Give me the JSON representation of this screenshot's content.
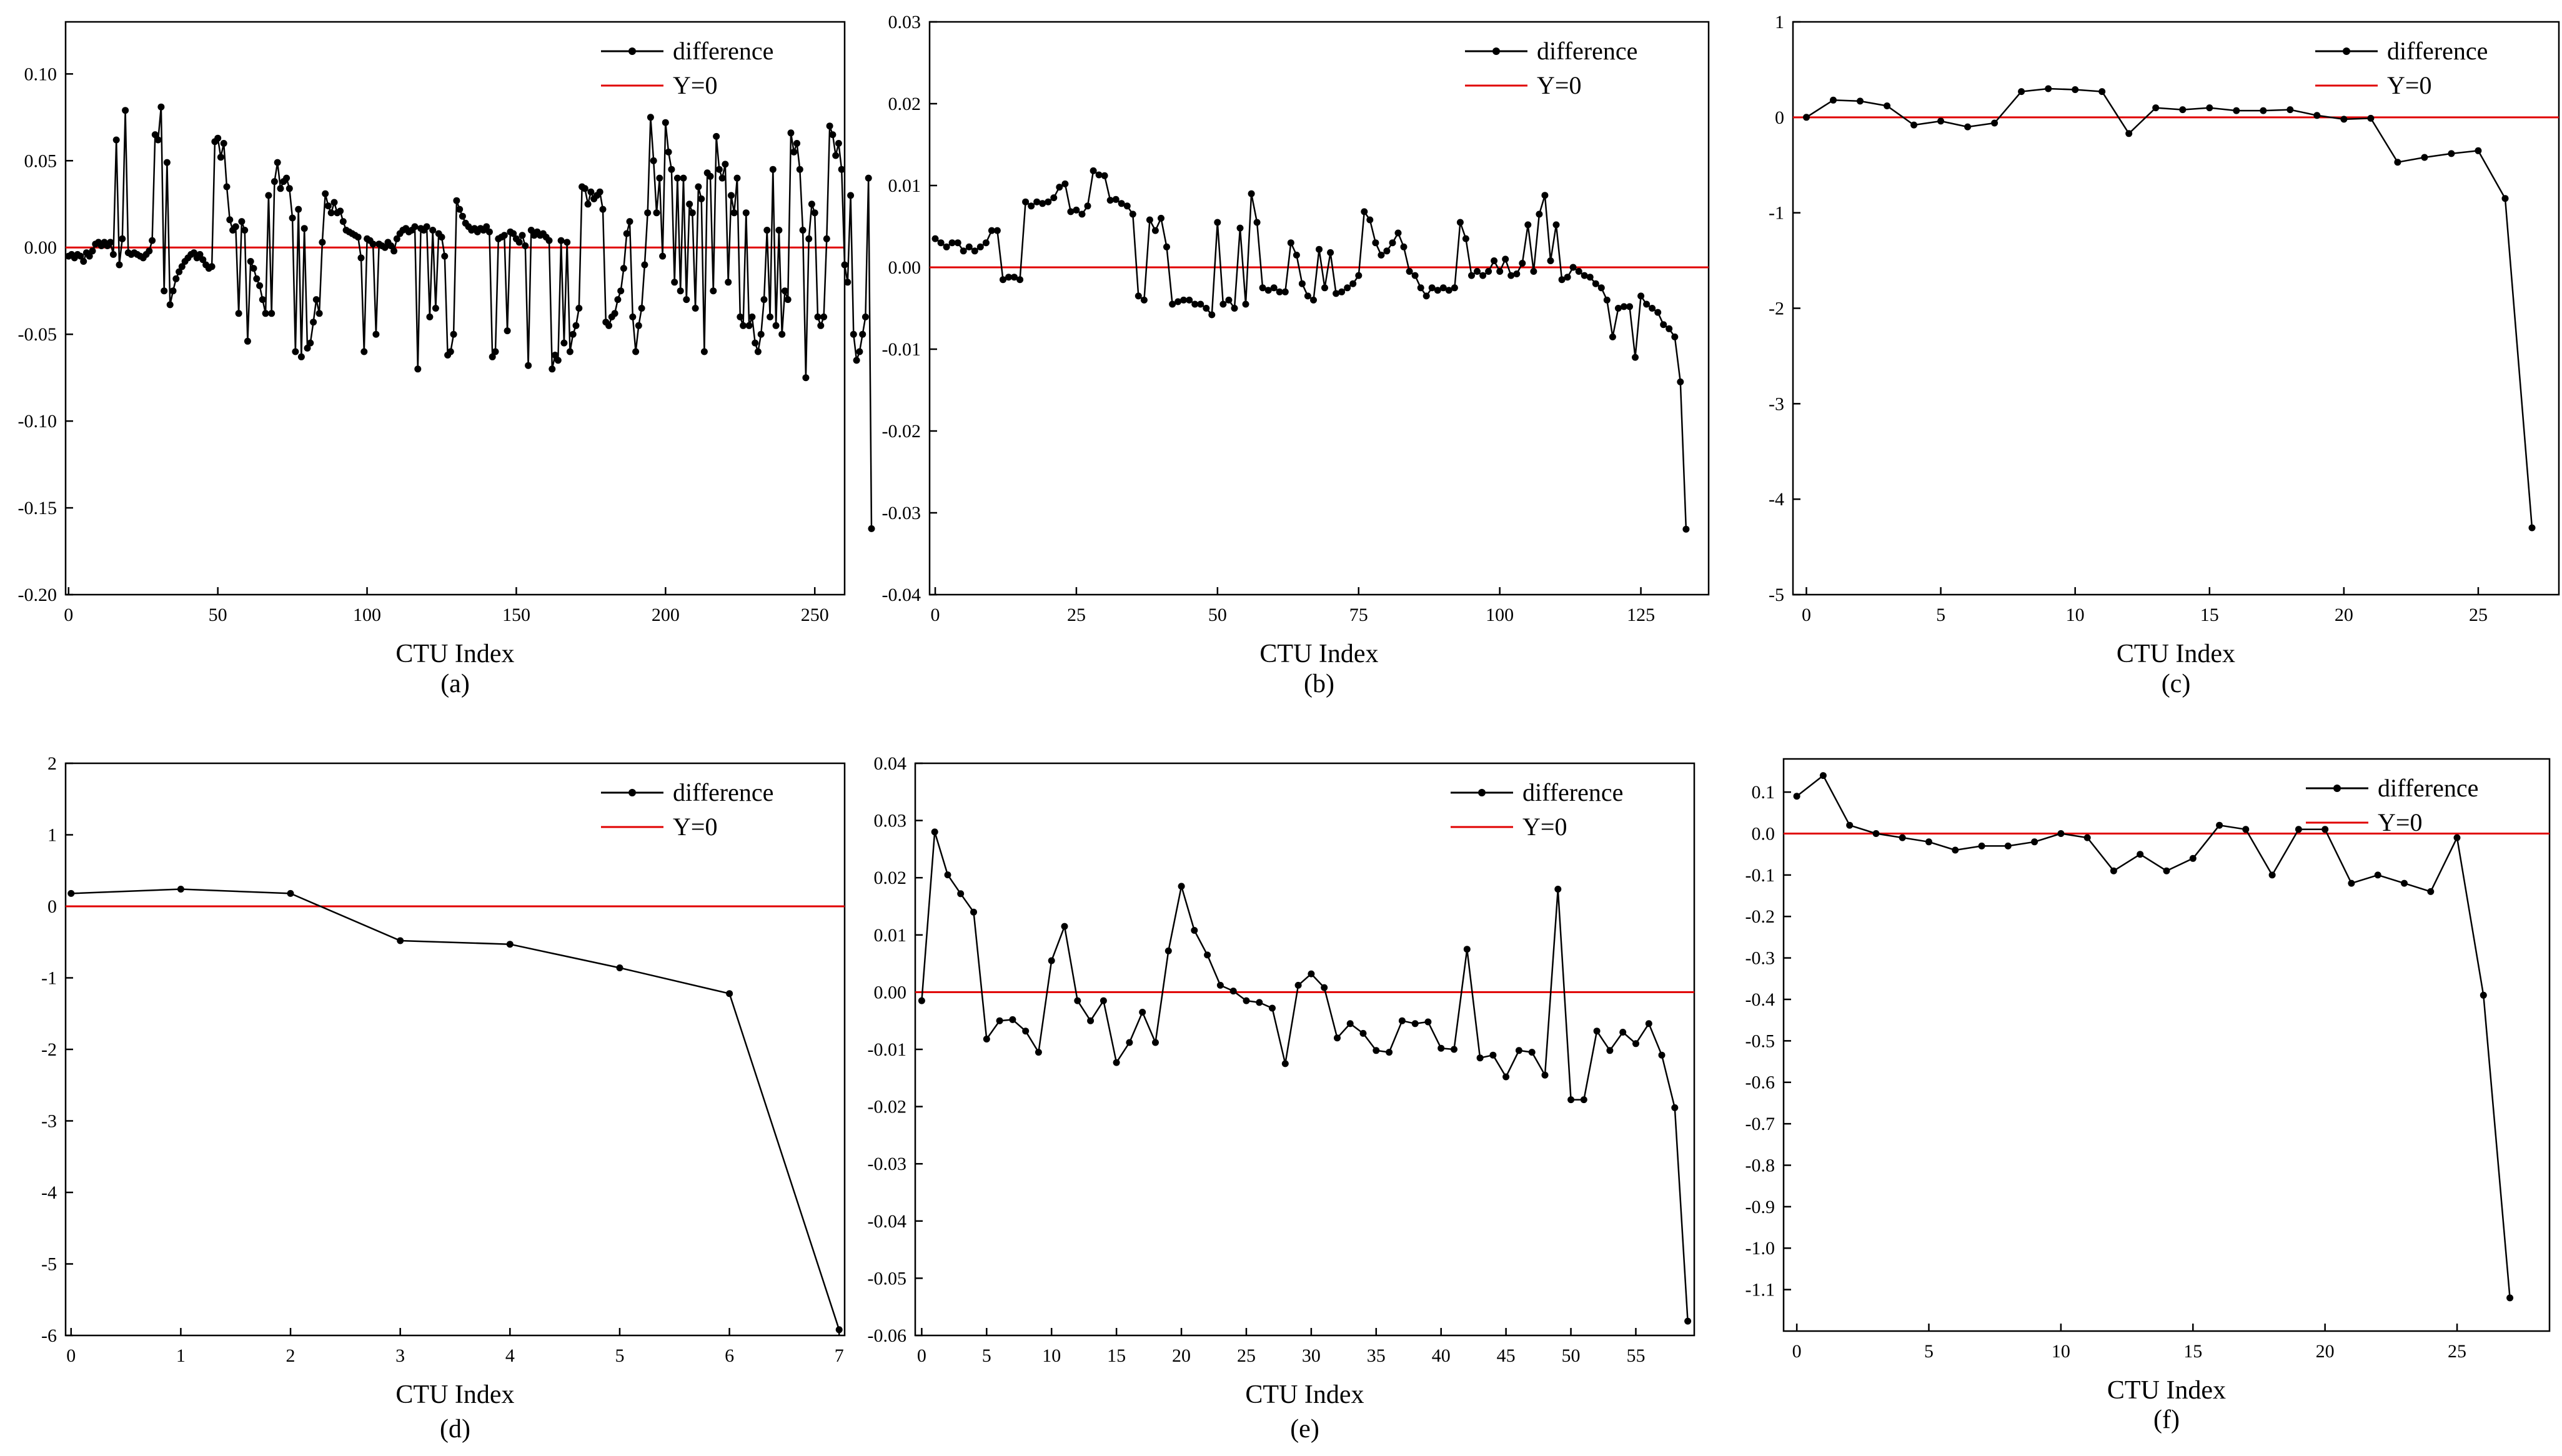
{
  "figure": {
    "legend": {
      "series": "difference",
      "reference": "Y=0"
    }
  },
  "colors": {
    "series": "#000000",
    "reference": "#e00000",
    "axes": "#000000"
  },
  "chart_data": [
    {
      "type": "line",
      "caption": "(a)",
      "xlabel": "CTU Index",
      "ylabel": "",
      "xlim": [
        -1,
        260
      ],
      "ylim": [
        -0.2,
        0.13
      ],
      "xticks": [
        0,
        50,
        100,
        150,
        200,
        250
      ],
      "xtick_labels": [
        "0",
        "50",
        "100",
        "150",
        "200",
        "250"
      ],
      "yticks": [
        -0.2,
        -0.15,
        -0.1,
        -0.05,
        0,
        0.05,
        0.1
      ],
      "ytick_labels": [
        "-0.20",
        "-0.15",
        "-0.10",
        "-0.05",
        "0.00",
        "0.05",
        "0.10"
      ],
      "legend": "top-right",
      "reference_y": 0,
      "series": [
        {
          "name": "difference",
          "x_start": 0,
          "x_step": 1.0,
          "values": [
            -0.005,
            -0.004,
            -0.006,
            -0.004,
            -0.005,
            -0.008,
            -0.003,
            -0.005,
            -0.002,
            0.002,
            0.003,
            0.001,
            0.003,
            0.001,
            0.003,
            -0.004,
            0.062,
            -0.01,
            0.005,
            0.079,
            -0.003,
            -0.004,
            -0.003,
            -0.004,
            -0.005,
            -0.006,
            -0.004,
            -0.002,
            0.004,
            0.065,
            0.062,
            0.081,
            -0.025,
            0.049,
            -0.033,
            -0.025,
            -0.018,
            -0.014,
            -0.011,
            -0.008,
            -0.006,
            -0.004,
            -0.003,
            -0.006,
            -0.004,
            -0.007,
            -0.01,
            -0.012,
            -0.011,
            0.061,
            0.063,
            0.052,
            0.06,
            0.035,
            0.016,
            0.01,
            0.012,
            -0.038,
            0.015,
            0.01,
            -0.054,
            -0.008,
            -0.012,
            -0.018,
            -0.022,
            -0.03,
            -0.038,
            0.03,
            -0.038,
            0.038,
            0.049,
            0.034,
            0.038,
            0.04,
            0.034,
            0.017,
            -0.06,
            0.022,
            -0.063,
            0.011,
            -0.058,
            -0.055,
            -0.043,
            -0.03,
            -0.038,
            0.003,
            0.031,
            0.024,
            0.02,
            0.026,
            0.02,
            0.021,
            0.015,
            0.01,
            0.009,
            0.008,
            0.007,
            0.006,
            -0.006,
            -0.06,
            0.005,
            0.004,
            0.002,
            -0.05,
            0.002,
            0.001,
            0.0,
            0.003,
            0.001,
            -0.002,
            0.005,
            0.008,
            0.01,
            0.011,
            0.009,
            0.01,
            0.012,
            -0.07,
            0.011,
            0.01,
            0.012,
            -0.04,
            0.01,
            -0.035,
            0.008,
            0.006,
            -0.005,
            -0.062,
            -0.06,
            -0.05,
            0.027,
            0.022,
            0.018,
            0.014,
            0.012,
            0.01,
            0.011,
            0.009,
            0.011,
            0.01,
            0.012,
            0.009,
            -0.063,
            -0.06,
            0.005,
            0.006,
            0.007,
            -0.048,
            0.009,
            0.008,
            0.005,
            0.003,
            0.007,
            0.001,
            -0.068,
            0.01,
            0.007,
            0.009,
            0.007,
            0.008,
            0.006,
            0.004,
            -0.07,
            -0.062,
            -0.065,
            0.004,
            -0.055,
            0.003,
            -0.06,
            -0.05,
            -0.045,
            -0.035,
            0.035,
            0.034,
            0.025,
            0.032,
            0.028,
            0.03,
            0.032,
            0.022,
            -0.043,
            -0.045,
            -0.04,
            -0.038,
            -0.03,
            -0.025,
            -0.012,
            0.008,
            0.015,
            -0.04,
            -0.06,
            -0.045,
            -0.035,
            -0.01,
            0.02,
            0.075,
            0.05,
            0.02,
            0.04,
            -0.005,
            0.072,
            0.055,
            0.045,
            -0.02,
            0.04,
            -0.025,
            0.04,
            -0.03,
            0.025,
            0.02,
            -0.035,
            0.035,
            0.028,
            -0.06,
            0.043,
            0.041,
            -0.025,
            0.064,
            0.045,
            0.04,
            0.048,
            -0.02,
            0.03,
            0.02,
            0.04,
            -0.04,
            -0.045,
            0.02,
            -0.045,
            -0.04,
            -0.055,
            -0.06,
            -0.05,
            -0.03,
            0.01,
            -0.04,
            0.045,
            -0.045,
            0.01,
            -0.05,
            -0.025,
            -0.03,
            0.066,
            0.055,
            0.06,
            0.045,
            0.01,
            -0.075,
            0.005,
            0.025,
            0.02,
            -0.04,
            -0.045,
            -0.04,
            0.005,
            0.07,
            0.065,
            0.053,
            0.06,
            0.045,
            -0.01,
            -0.02,
            0.03,
            -0.05,
            -0.065,
            -0.06,
            -0.05,
            -0.04,
            0.04,
            -0.162
          ]
        }
      ]
    },
    {
      "type": "line",
      "caption": "(b)",
      "xlabel": "CTU Index",
      "ylabel": "",
      "xlim": [
        -1,
        137
      ],
      "ylim": [
        -0.04,
        0.03
      ],
      "xticks": [
        0,
        25,
        50,
        75,
        100,
        125
      ],
      "xtick_labels": [
        "0",
        "25",
        "50",
        "75",
        "100",
        "125"
      ],
      "yticks": [
        -0.04,
        -0.03,
        -0.02,
        -0.01,
        0,
        0.01,
        0.02,
        0.03
      ],
      "ytick_labels": [
        "-0.04",
        "-0.03",
        "-0.02",
        "-0.01",
        "0.00",
        "0.01",
        "0.02",
        "0.03"
      ],
      "legend": "top-right",
      "reference_y": 0,
      "series": [
        {
          "name": "difference",
          "x_start": 0,
          "x_step": 1.0,
          "values": [
            0.0035,
            0.003,
            0.0025,
            0.003,
            0.003,
            0.002,
            0.0025,
            0.002,
            0.0025,
            0.003,
            0.0045,
            0.0045,
            -0.0015,
            -0.0012,
            -0.0012,
            -0.0015,
            0.008,
            0.0075,
            0.008,
            0.0078,
            0.008,
            0.0085,
            0.0098,
            0.0102,
            0.0068,
            0.007,
            0.0065,
            0.0075,
            0.0118,
            0.0113,
            0.0112,
            0.0082,
            0.0083,
            0.0078,
            0.0075,
            0.0065,
            -0.0035,
            -0.004,
            0.0058,
            0.0045,
            0.006,
            0.0025,
            -0.0045,
            -0.0042,
            -0.004,
            -0.004,
            -0.0045,
            -0.0045,
            -0.005,
            -0.0058,
            0.0055,
            -0.0045,
            -0.004,
            -0.005,
            0.0048,
            -0.0045,
            0.009,
            0.0055,
            -0.0025,
            -0.0028,
            -0.0025,
            -0.003,
            -0.003,
            0.003,
            0.0015,
            -0.002,
            -0.0035,
            -0.004,
            0.0022,
            -0.0025,
            0.0018,
            -0.0032,
            -0.003,
            -0.0025,
            -0.002,
            -0.001,
            0.0068,
            0.0058,
            0.003,
            0.0015,
            0.002,
            0.003,
            0.0042,
            0.0025,
            -0.0005,
            -0.001,
            -0.0025,
            -0.0035,
            -0.0025,
            -0.0028,
            -0.0025,
            -0.0028,
            -0.0025,
            0.0055,
            0.0035,
            -0.001,
            -0.0005,
            -0.001,
            -0.0005,
            0.0008,
            -0.0005,
            0.001,
            -0.001,
            -0.0008,
            0.0005,
            0.0052,
            -0.0005,
            0.0065,
            0.0088,
            0.0008,
            0.0052,
            -0.0015,
            -0.0012,
            0.0,
            -0.0005,
            -0.001,
            -0.0012,
            -0.002,
            -0.0025,
            -0.004,
            -0.0085,
            -0.005,
            -0.0048,
            -0.0048,
            -0.011,
            -0.0035,
            -0.0045,
            -0.005,
            -0.0055,
            -0.007,
            -0.0075,
            -0.0085,
            -0.014,
            -0.032
          ]
        }
      ]
    },
    {
      "type": "line",
      "caption": "(c)",
      "xlabel": "CTU Index",
      "ylabel": "",
      "xlim": [
        -0.5,
        28
      ],
      "ylim": [
        -5,
        1
      ],
      "xticks": [
        0,
        5,
        10,
        15,
        20,
        25
      ],
      "xtick_labels": [
        "0",
        "5",
        "10",
        "15",
        "20",
        "25"
      ],
      "yticks": [
        -5,
        -4,
        -3,
        -2,
        -1,
        0,
        1
      ],
      "ytick_labels": [
        "-5",
        "-4",
        "-3",
        "-2",
        "-1",
        "0",
        "1"
      ],
      "legend": "top-right",
      "reference_y": 0,
      "series": [
        {
          "name": "difference",
          "x_start": 0,
          "x_step": 1.0,
          "values": [
            0.0,
            0.18,
            0.17,
            0.12,
            -0.08,
            -0.04,
            -0.1,
            -0.06,
            0.27,
            0.3,
            0.29,
            0.27,
            -0.17,
            0.1,
            0.08,
            0.1,
            0.07,
            0.07,
            0.08,
            0.02,
            -0.02,
            -0.01,
            -0.47,
            -0.42,
            -0.38,
            -0.35,
            -0.85,
            -4.3
          ]
        }
      ]
    },
    {
      "type": "line",
      "caption": "(d)",
      "xlabel": "CTU Index",
      "ylabel": "",
      "xlim": [
        -0.05,
        7.05
      ],
      "ylim": [
        -6,
        2
      ],
      "xticks": [
        0,
        1,
        2,
        3,
        4,
        5,
        6,
        7
      ],
      "xtick_labels": [
        "0",
        "1",
        "2",
        "3",
        "4",
        "5",
        "6",
        "7"
      ],
      "yticks": [
        -6,
        -5,
        -4,
        -3,
        -2,
        -1,
        0,
        1,
        2
      ],
      "ytick_labels": [
        "-6",
        "-5",
        "-4",
        "-3",
        "-2",
        "-1",
        "0",
        "1",
        "2"
      ],
      "legend": "top-right",
      "reference_y": 0,
      "series": [
        {
          "name": "difference",
          "x_start": 0,
          "x_step": 1.0,
          "values": [
            0.18,
            0.24,
            0.18,
            -0.48,
            -0.53,
            -0.86,
            -1.22,
            -5.92
          ]
        }
      ]
    },
    {
      "type": "line",
      "caption": "(e)",
      "xlabel": "CTU Index",
      "ylabel": "",
      "xlim": [
        -0.5,
        59.5
      ],
      "ylim": [
        -0.06,
        0.04
      ],
      "xticks": [
        0,
        5,
        10,
        15,
        20,
        25,
        30,
        35,
        40,
        45,
        50,
        55
      ],
      "xtick_labels": [
        "0",
        "5",
        "10",
        "15",
        "20",
        "25",
        "30",
        "35",
        "40",
        "45",
        "50",
        "55"
      ],
      "yticks": [
        -0.06,
        -0.05,
        -0.04,
        -0.03,
        -0.02,
        -0.01,
        0,
        0.01,
        0.02,
        0.03,
        0.04
      ],
      "ytick_labels": [
        "-0.06",
        "-0.05",
        "-0.04",
        "-0.03",
        "-0.02",
        "-0.01",
        "0.00",
        "0.01",
        "0.02",
        "0.03",
        "0.04"
      ],
      "legend": "top-right",
      "reference_y": 0,
      "series": [
        {
          "name": "difference",
          "x_start": 0,
          "x_step": 1.0,
          "values": [
            -0.0015,
            0.028,
            0.0205,
            0.0172,
            0.014,
            -0.0082,
            -0.005,
            -0.0048,
            -0.0068,
            -0.0105,
            0.0055,
            0.0115,
            -0.0015,
            -0.005,
            -0.0015,
            -0.0123,
            -0.0088,
            -0.0035,
            -0.0088,
            0.0072,
            0.0185,
            0.0108,
            0.0065,
            0.0012,
            0.0002,
            -0.0015,
            -0.0018,
            -0.0028,
            -0.0125,
            0.0012,
            0.0032,
            0.0008,
            -0.008,
            -0.0055,
            -0.0072,
            -0.0102,
            -0.0105,
            -0.005,
            -0.0055,
            -0.0052,
            -0.0098,
            -0.01,
            0.0075,
            -0.0115,
            -0.011,
            -0.0148,
            -0.0102,
            -0.0105,
            -0.0145,
            0.018,
            -0.0188,
            -0.0188,
            -0.0068,
            -0.0102,
            -0.007,
            -0.009,
            -0.0055,
            -0.011,
            -0.0202,
            -0.0575
          ]
        }
      ]
    },
    {
      "type": "line",
      "caption": "(f)",
      "xlabel": "CTU Index",
      "ylabel": "",
      "xlim": [
        -0.5,
        28.5
      ],
      "ylim": [
        -1.2,
        0.18
      ],
      "xticks": [
        0,
        5,
        10,
        15,
        20,
        25
      ],
      "xtick_labels": [
        "0",
        "5",
        "10",
        "15",
        "20",
        "25"
      ],
      "yticks": [
        -1.1,
        -1.0,
        -0.9,
        -0.8,
        -0.7,
        -0.6,
        -0.5,
        -0.4,
        -0.3,
        -0.2,
        -0.1,
        0.0,
        0.1
      ],
      "ytick_labels": [
        "-1.1",
        "-1.0",
        "-0.9",
        "-0.8",
        "-0.7",
        "-0.6",
        "-0.5",
        "-0.4",
        "-0.3",
        "-0.2",
        "-0.1",
        "0.0",
        "0.1"
      ],
      "legend": "top-right",
      "reference_y": 0,
      "series": [
        {
          "name": "difference",
          "x_start": 0,
          "x_step": 1.0,
          "values": [
            0.09,
            0.14,
            0.02,
            0.0,
            -0.01,
            -0.02,
            -0.04,
            -0.03,
            -0.03,
            -0.02,
            0.0,
            -0.01,
            -0.09,
            -0.05,
            -0.09,
            -0.06,
            0.02,
            0.01,
            -0.1,
            0.01,
            0.01,
            -0.12,
            -0.1,
            -0.12,
            -0.14,
            -0.01,
            -0.39,
            -1.12
          ]
        }
      ]
    }
  ]
}
